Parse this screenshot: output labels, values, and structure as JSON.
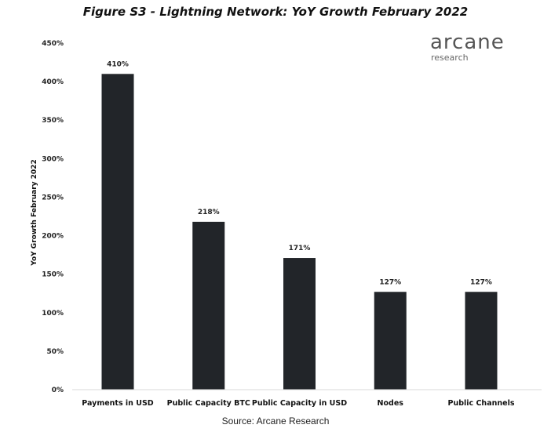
{
  "header": {
    "title": "Figure S3 - Lightning Network: YoY Growth February 2022"
  },
  "logo": {
    "name": "arcane",
    "subtitle": "research"
  },
  "footer": {
    "source": "Source: Arcane Research"
  },
  "chart_data": {
    "type": "bar",
    "title": "Figure S3 - Lightning Network: YoY Growth February 2022",
    "xlabel": "",
    "ylabel": "YoY Growth February 2022",
    "categories": [
      "Payments in USD",
      "Public Capacity BTC",
      "Public Capacity in USD",
      "Nodes",
      "Public Channels"
    ],
    "values": [
      410,
      218,
      171,
      127,
      127
    ],
    "data_labels": [
      "410%",
      "218%",
      "171%",
      "127%",
      "127%"
    ],
    "ylim": [
      0,
      450
    ],
    "yticks": [
      0,
      50,
      100,
      150,
      200,
      250,
      300,
      350,
      400,
      450
    ],
    "ytick_labels": [
      "0%",
      "50%",
      "100%",
      "150%",
      "200%",
      "250%",
      "300%",
      "350%",
      "400%",
      "450%"
    ],
    "bar_color": "#222529",
    "grid": false,
    "legend": "none"
  }
}
